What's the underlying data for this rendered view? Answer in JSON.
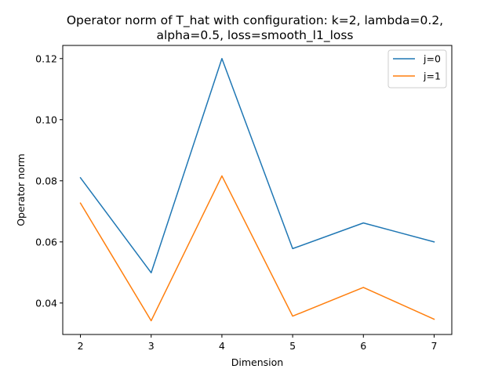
{
  "chart_data": {
    "type": "line",
    "title": "Operator norm of T_hat with configuration: k=2, lambda=0.2,",
    "subtitle": "alpha=0.5, loss=smooth_l1_loss",
    "xlabel": "Dimension",
    "ylabel": "Operator norm",
    "x": [
      2,
      3,
      4,
      5,
      6,
      7
    ],
    "xlim": [
      1.75,
      7.25
    ],
    "ylim": [
      0.0297,
      0.1243
    ],
    "xticks": [
      "2",
      "3",
      "4",
      "5",
      "6",
      "7"
    ],
    "yticks": [
      "0.04",
      "0.06",
      "0.08",
      "0.10",
      "0.12"
    ],
    "grid": false,
    "legend_position": "upper right",
    "series": [
      {
        "name": "j=0",
        "color": "#1f77b4",
        "values": [
          0.081,
          0.0499,
          0.12,
          0.0578,
          0.0662,
          0.06
        ]
      },
      {
        "name": "j=1",
        "color": "#ff7f0e",
        "values": [
          0.0727,
          0.0342,
          0.0816,
          0.0357,
          0.0451,
          0.0347
        ]
      }
    ]
  }
}
